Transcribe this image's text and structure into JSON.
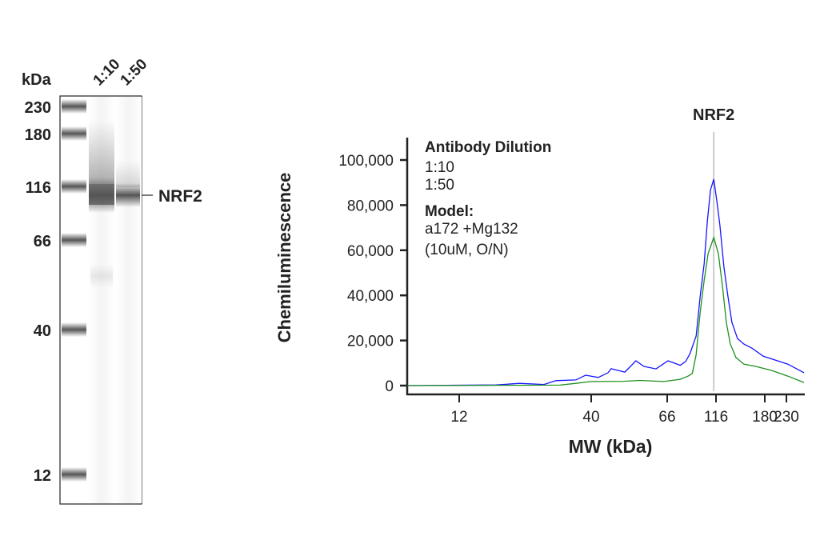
{
  "gel": {
    "unit_label": "kDa",
    "lanes": [
      "1:10",
      "1:50"
    ],
    "ladder_markers": [
      230,
      180,
      116,
      66,
      40,
      12
    ],
    "band_label": "NRF2"
  },
  "chart_data": {
    "type": "line",
    "title": "",
    "xlabel": "MW (kDa)",
    "ylabel": "Chemiluminescence",
    "x_scale": "log (molecular weight)",
    "x_ticks": [
      12,
      40,
      66,
      116,
      180,
      230
    ],
    "x_tick_labels": [
      "12",
      "40",
      "66",
      "116",
      "180",
      "230"
    ],
    "xlim": [
      7.5,
      280
    ],
    "y_ticks": [
      0,
      20000,
      40000,
      60000,
      80000,
      100000
    ],
    "y_tick_labels": [
      "0",
      "20,000",
      "40,000",
      "60,000",
      "80,000",
      "100,000"
    ],
    "ylim": [
      0,
      105000
    ],
    "grid": false,
    "annotation": {
      "label": "NRF2",
      "x": 113,
      "color": "#aaaaaa"
    },
    "legend": {
      "position": "top-left",
      "title": "Antibody Dilution",
      "model_title": "Model:",
      "model_lines": [
        "a172 +Mg132",
        "(10uM, O/N)"
      ]
    },
    "series": [
      {
        "name": "1:10",
        "color": "#1515ff",
        "label_color": "#3a4ea6",
        "x": [
          7.5,
          16.8,
          20.8,
          26,
          29,
          34.8,
          38,
          41.9,
          44.7,
          45.6,
          49.9,
          53.7,
          56.6,
          61.3,
          66.6,
          76.7,
          81.7,
          85.7,
          92.2,
          96.6,
          101.2,
          104.9,
          108.8,
          113,
          116.8,
          120.2,
          124.6,
          129.1,
          133.9,
          140.8,
          149.2,
          160.3,
          177.6,
          203,
          234,
          280
        ],
        "y": [
          0,
          300,
          1000,
          500,
          2200,
          2500,
          4600,
          3600,
          5700,
          7500,
          6000,
          11000,
          8500,
          7400,
          11000,
          9000,
          10700,
          14000,
          22000,
          39500,
          54000,
          72500,
          86700,
          91500,
          82000,
          71000,
          52600,
          39600,
          28000,
          20800,
          18400,
          16600,
          13000,
          11300,
          9500,
          5700
        ]
      },
      {
        "name": "1:50",
        "color": "#1f8f1f",
        "label_color": "#16893c",
        "x": [
          7.5,
          30,
          34.8,
          40,
          49.6,
          55.1,
          64.6,
          76.7,
          83.9,
          88.2,
          92.2,
          96.6,
          101.2,
          105.9,
          113,
          118.5,
          122.9,
          127.3,
          132,
          138.8,
          149.2,
          165.8,
          194.9,
          234,
          280
        ],
        "y": [
          0,
          200,
          1000,
          1800,
          1900,
          2300,
          1800,
          2800,
          4200,
          5400,
          13800,
          32500,
          46600,
          58400,
          65700,
          58400,
          44300,
          28000,
          18400,
          12500,
          9500,
          8500,
          6700,
          4200,
          1400
        ]
      }
    ]
  }
}
